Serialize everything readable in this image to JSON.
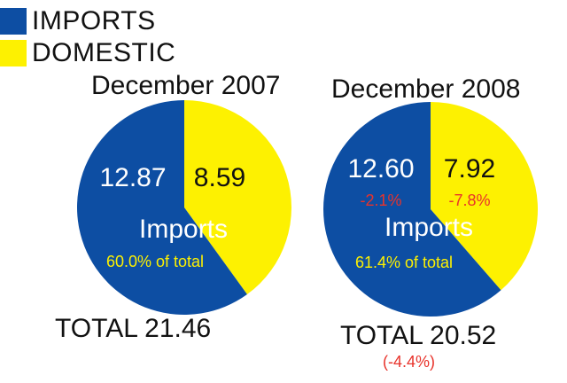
{
  "colors": {
    "imports": "#0d4ea3",
    "domestic": "#fdf101",
    "label_light": "#ffffff",
    "label_dark": "#111111",
    "share": "#fdf101",
    "negative": "#e8332b"
  },
  "legend": [
    {
      "label": "IMPORTS",
      "color": "#0d4ea3"
    },
    {
      "label": "DOMESTIC",
      "color": "#fdf101"
    }
  ],
  "chart_data": [
    {
      "type": "pie",
      "title": "December 2007",
      "slices": [
        {
          "name": "IMPORTS",
          "value": 12.87,
          "label": "12.87"
        },
        {
          "name": "DOMESTIC",
          "value": 8.59,
          "label": "8.59"
        }
      ],
      "imports_label": "Imports",
      "imports_share": "60.0% of total",
      "total": "TOTAL 21.46"
    },
    {
      "type": "pie",
      "title": "December 2008",
      "slices": [
        {
          "name": "IMPORTS",
          "value": 12.6,
          "label": "12.60",
          "change": "-2.1%"
        },
        {
          "name": "DOMESTIC",
          "value": 7.92,
          "label": "7.92",
          "change": "-7.8%"
        }
      ],
      "imports_label": "Imports",
      "imports_share": "61.4% of total",
      "total": "TOTAL 20.52",
      "total_change": "(-4.4%)"
    }
  ]
}
